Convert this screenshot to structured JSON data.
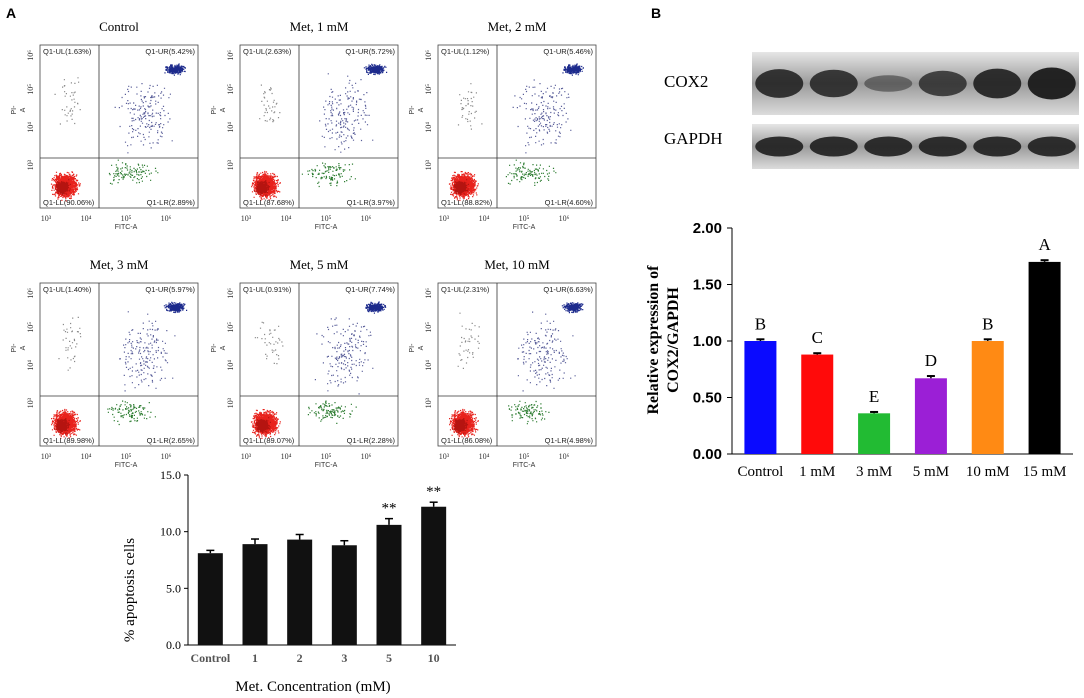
{
  "panel_labels": {
    "a": "A",
    "b": "B"
  },
  "colors": {
    "lower_left": "#e8221c",
    "upper_right": "#1c2a8c",
    "lower_right": "#2e7d32",
    "upper_left": "#8a8a8a",
    "apop_bar": "#111111",
    "blot_band": "#1a1a1a",
    "blot_bg": "#9a9a9a"
  },
  "flow_axes": {
    "x_label": "FITC-A",
    "y_label": "PI-A",
    "y_label_top": "PI-",
    "y_label_bottom": "A",
    "x_ticks": [
      "10³",
      "10⁴",
      "10⁵",
      "10⁶"
    ],
    "y_ticks": [
      "10⁶",
      "10⁵",
      "10⁴",
      "10³"
    ]
  },
  "flow_plots": [
    {
      "title": "Control",
      "ul": "Q1-UL(1.63%)",
      "ur": "Q1-UR(5.42%)",
      "ll": "Q1-LL(90.06%)",
      "lr": "Q1-LR(2.89%)"
    },
    {
      "title": "Met, 1 mM",
      "ul": "Q1-UL(2.63%)",
      "ur": "Q1-UR(5.72%)",
      "ll": "Q1-LL(87.68%)",
      "lr": "Q1-LR(3.97%)"
    },
    {
      "title": "Met, 2 mM",
      "ul": "Q1-UL(1.12%)",
      "ur": "Q1-UR(5.46%)",
      "ll": "Q1-LL(88.82%)",
      "lr": "Q1-LR(4.60%)"
    },
    {
      "title": "Met, 3 mM",
      "ul": "Q1-UL(1.40%)",
      "ur": "Q1-UR(5.97%)",
      "ll": "Q1-LL(89.98%)",
      "lr": "Q1-LR(2.65%)"
    },
    {
      "title": "Met, 5 mM",
      "ul": "Q1-UL(0.91%)",
      "ur": "Q1-UR(7.74%)",
      "ll": "Q1-LL(89.07%)",
      "lr": "Q1-LR(2.28%)"
    },
    {
      "title": "Met, 10 mM",
      "ul": "Q1-UL(2.31%)",
      "ur": "Q1-UR(6.63%)",
      "ll": "Q1-LL(86.08%)",
      "lr": "Q1-LR(4.98%)"
    }
  ],
  "western_blot": {
    "labels": [
      "COX2",
      "GAPDH"
    ],
    "cox2_band_intensity": [
      0.85,
      0.8,
      0.3,
      0.7,
      0.9,
      1.0
    ],
    "gapdh_band_intensity": [
      0.9,
      0.9,
      0.9,
      0.9,
      0.9,
      0.9
    ]
  },
  "chart_data": [
    {
      "type": "bar",
      "title": "",
      "categories": [
        "Control",
        "1",
        "2",
        "3",
        "5",
        "10"
      ],
      "values": [
        8.1,
        8.9,
        9.3,
        8.8,
        10.6,
        12.2
      ],
      "errors": [
        0.25,
        0.45,
        0.45,
        0.4,
        0.55,
        0.4
      ],
      "annotations": [
        "",
        "",
        "",
        "",
        "**",
        "**"
      ],
      "xlabel": "Met. Concentration (mM)",
      "ylabel": "% apoptosis cells",
      "ylim": [
        0,
        15
      ],
      "yticks": [
        "0.0",
        "5.0",
        "10.0",
        "15.0"
      ]
    },
    {
      "type": "bar",
      "title": "",
      "categories": [
        "Control",
        "1 mM",
        "3 mM",
        "5 mM",
        "10 mM",
        "15 mM"
      ],
      "values": [
        1.0,
        0.88,
        0.36,
        0.67,
        1.0,
        1.7
      ],
      "errors": [
        0.015,
        0.012,
        0.012,
        0.02,
        0.015,
        0.015
      ],
      "annotations": [
        "B",
        "C",
        "E",
        "D",
        "B",
        "A"
      ],
      "bar_colors": [
        "#0a0aff",
        "#ff0a0a",
        "#22bb33",
        "#9b1fd6",
        "#ff8a14",
        "#000000"
      ],
      "xlabel": "",
      "ylabel_line1": "Relative expression of",
      "ylabel_line2": "COX2/GAPDH",
      "ylim": [
        0,
        2.0
      ],
      "yticks": [
        "0.00",
        "0.50",
        "1.00",
        "1.50",
        "2.00"
      ]
    }
  ]
}
